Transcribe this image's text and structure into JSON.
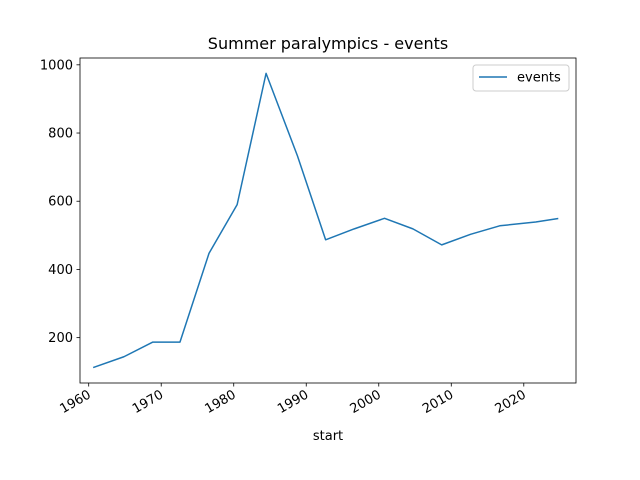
{
  "chart_data": {
    "type": "line",
    "title": "Summer paralympics - events",
    "xlabel": "start",
    "ylabel": "",
    "legend_position": "top-right",
    "grid": false,
    "xlim": [
      1958.8,
      2027.2
    ],
    "ylim": [
      67,
      1020
    ],
    "x_ticks": [
      1960,
      1970,
      1980,
      1990,
      2000,
      2010,
      2020
    ],
    "y_ticks": [
      200,
      400,
      600,
      800,
      1000
    ],
    "series": [
      {
        "name": "events",
        "color": "#1f77b4",
        "x": [
          "1960-09-18",
          "1964-11-08",
          "1968-11-04",
          "1972-08-02",
          "1976-08-03",
          "1980-06-21",
          "1984-06-17",
          "1988-10-15",
          "1992-09-03",
          "1996-08-15",
          "2000-10-18",
          "2004-09-17",
          "2008-09-06",
          "2012-08-29",
          "2016-09-07",
          "2021-08-24",
          "2024-08-28"
        ],
        "values": [
          113,
          144,
          187,
          187,
          447,
          590,
          975,
          733,
          487,
          519,
          550,
          519,
          472,
          503,
          528,
          539,
          549
        ]
      }
    ]
  }
}
